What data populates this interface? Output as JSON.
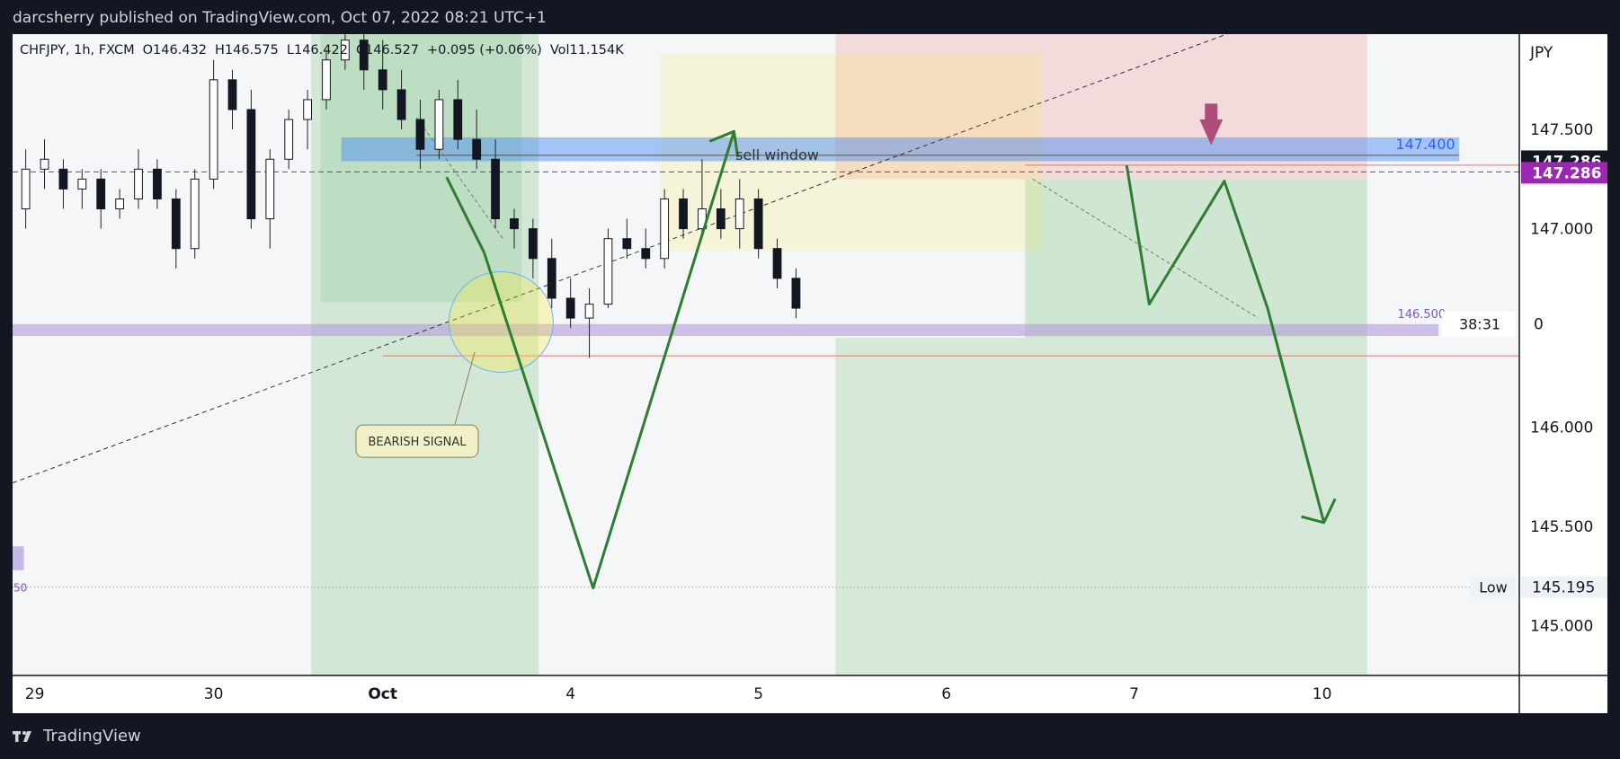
{
  "header": {
    "publisher": "darcsherry published on TradingView.com, Oct 07, 2022 08:21 UTC+1"
  },
  "footer": {
    "brand": "TradingView"
  },
  "legend": {
    "symbol": "CHFJPY, 1h, FXCM",
    "open": "O146.432",
    "high": "H146.575",
    "low": "L146.422",
    "close": "C146.527",
    "change": "+0.095 (+0.06%)",
    "volume": "Vol11.154K"
  },
  "chart_data": {
    "type": "candlestick",
    "currency": "JPY",
    "y_ticks": [
      "147.500",
      "147.000",
      "146.000",
      "145.500",
      "145.000"
    ],
    "x_ticks": [
      "29",
      "30",
      "Oct",
      "4",
      "5",
      "6",
      "7",
      "10"
    ],
    "x_tick_pos": [
      -3,
      7,
      16,
      26,
      36,
      46,
      56,
      66
    ],
    "ylim": [
      144.75,
      147.98
    ],
    "xlim": [
      -3.7,
      76.5
    ],
    "price_labels": {
      "current": "147.286",
      "alert": "147.286",
      "countdown": "38:31",
      "partial": "0",
      "low_label": "Low",
      "low_value": "145.195",
      "zone_upper": "147.400",
      "zone_lower": "146.500",
      "left_partial": "50"
    },
    "annotations": {
      "sell_window": "sell window",
      "bearish_signal": "BEARISH SIGNAL"
    },
    "levels": {
      "sell_zone": [
        147.34,
        147.46
      ],
      "buy_zone": [
        146.46,
        146.52
      ],
      "alert_line": 147.286,
      "red_line_upper": 147.32,
      "red_line_lower": 146.36,
      "low_line": 145.195
    },
    "candles": [
      [
        -3,
        147.1,
        147.4,
        147.0,
        147.3
      ],
      [
        -2,
        147.3,
        147.45,
        147.2,
        147.35
      ],
      [
        -1,
        147.3,
        147.35,
        147.1,
        147.2
      ],
      [
        0,
        147.2,
        147.3,
        147.1,
        147.25
      ],
      [
        1,
        147.25,
        147.3,
        147.0,
        147.1
      ],
      [
        2,
        147.1,
        147.2,
        147.05,
        147.15
      ],
      [
        3,
        147.15,
        147.4,
        147.1,
        147.3
      ],
      [
        4,
        147.3,
        147.35,
        147.1,
        147.15
      ],
      [
        5,
        147.15,
        147.2,
        146.8,
        146.9
      ],
      [
        6,
        146.9,
        147.3,
        146.85,
        147.25
      ],
      [
        7,
        147.25,
        147.85,
        147.2,
        147.75
      ],
      [
        8,
        147.75,
        147.8,
        147.5,
        147.6
      ],
      [
        9,
        147.6,
        147.7,
        147.0,
        147.05
      ],
      [
        10,
        147.05,
        147.4,
        146.9,
        147.35
      ],
      [
        11,
        147.35,
        147.6,
        147.3,
        147.55
      ],
      [
        12,
        147.55,
        147.7,
        147.4,
        147.65
      ],
      [
        13,
        147.65,
        147.9,
        147.6,
        147.85
      ],
      [
        14,
        147.85,
        147.98,
        147.8,
        147.95
      ],
      [
        15,
        147.95,
        148.1,
        147.7,
        147.8
      ],
      [
        16,
        147.8,
        147.95,
        147.6,
        147.7
      ],
      [
        17,
        147.7,
        147.8,
        147.5,
        147.55
      ],
      [
        18,
        147.55,
        147.65,
        147.3,
        147.4
      ],
      [
        19,
        147.4,
        147.7,
        147.35,
        147.65
      ],
      [
        20,
        147.65,
        147.75,
        147.4,
        147.45
      ],
      [
        21,
        147.45,
        147.6,
        147.3,
        147.35
      ],
      [
        22,
        147.35,
        147.45,
        147.0,
        147.05
      ],
      [
        23,
        147.05,
        147.1,
        146.9,
        147.0
      ],
      [
        24,
        147.0,
        147.05,
        146.75,
        146.85
      ],
      [
        25,
        146.85,
        146.95,
        146.6,
        146.65
      ],
      [
        26,
        146.65,
        146.75,
        146.5,
        146.55
      ],
      [
        27,
        146.55,
        146.7,
        146.35,
        146.62
      ],
      [
        28,
        146.62,
        147.0,
        146.6,
        146.95
      ],
      [
        29,
        146.95,
        147.05,
        146.85,
        146.9
      ],
      [
        30,
        146.9,
        147.0,
        146.8,
        146.85
      ],
      [
        31,
        146.85,
        147.2,
        146.8,
        147.15
      ],
      [
        32,
        147.15,
        147.2,
        146.95,
        147.0
      ],
      [
        33,
        147.0,
        147.35,
        146.95,
        147.1
      ],
      [
        34,
        147.1,
        147.2,
        146.95,
        147.0
      ],
      [
        35,
        147.0,
        147.25,
        146.9,
        147.15
      ],
      [
        36,
        147.15,
        147.2,
        146.85,
        146.9
      ],
      [
        37,
        146.9,
        146.95,
        146.7,
        146.75
      ],
      [
        38,
        146.75,
        146.8,
        146.55,
        146.6
      ]
    ]
  }
}
